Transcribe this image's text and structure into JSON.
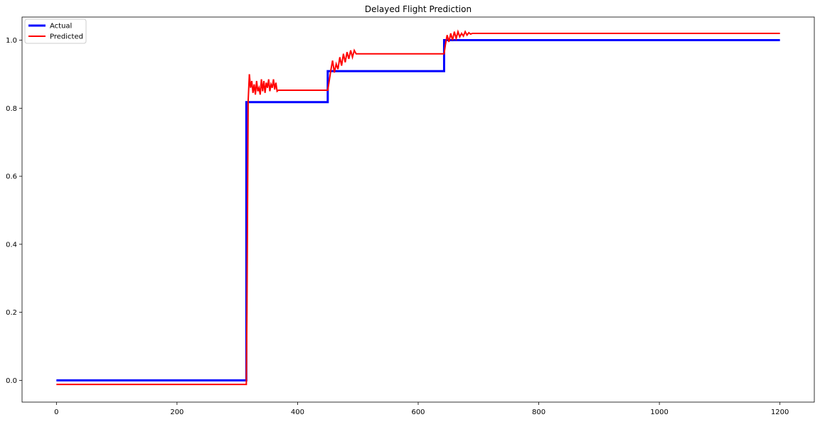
{
  "chart_data": {
    "type": "line",
    "title": "Delayed Flight Prediction",
    "xlabel": "",
    "ylabel": "",
    "xlim": [
      -57,
      1257
    ],
    "ylim": [
      -0.064,
      1.068
    ],
    "x_ticks": [
      0,
      200,
      400,
      600,
      800,
      1000,
      1200
    ],
    "y_ticks": [
      0.0,
      0.2,
      0.4,
      0.6,
      0.8,
      1.0
    ],
    "x_tick_labels": [
      "0",
      "200",
      "400",
      "600",
      "800",
      "1000",
      "1200"
    ],
    "y_tick_labels": [
      "0.0",
      "0.2",
      "0.4",
      "0.6",
      "0.8",
      "1.0"
    ],
    "grid": false,
    "legend_position": "top-left",
    "series": [
      {
        "name": "Actual",
        "color": "#0000ff",
        "x": [
          0,
          315,
          315,
          450,
          450,
          643,
          643,
          1200
        ],
        "y": [
          0.0,
          0.0,
          0.818,
          0.818,
          0.909,
          0.909,
          1.0,
          1.0
        ]
      },
      {
        "name": "Predicted",
        "color": "#ff0000",
        "x": [
          0,
          315,
          316,
          318,
          320,
          322,
          324,
          326,
          328,
          330,
          332,
          334,
          336,
          338,
          340,
          342,
          344,
          346,
          348,
          350,
          352,
          354,
          356,
          358,
          360,
          362,
          364,
          366,
          368,
          450,
          452,
          455,
          458,
          461,
          464,
          467,
          470,
          473,
          476,
          479,
          482,
          485,
          488,
          491,
          494,
          497,
          500,
          643,
          645,
          648,
          651,
          654,
          657,
          660,
          663,
          666,
          669,
          672,
          675,
          678,
          681,
          684,
          687,
          690,
          693,
          1200
        ],
        "y": [
          -0.012,
          -0.012,
          0.2,
          0.82,
          0.9,
          0.86,
          0.88,
          0.845,
          0.87,
          0.84,
          0.88,
          0.85,
          0.86,
          0.84,
          0.885,
          0.85,
          0.88,
          0.845,
          0.875,
          0.86,
          0.885,
          0.85,
          0.87,
          0.86,
          0.885,
          0.855,
          0.875,
          0.85,
          0.853,
          0.853,
          0.875,
          0.91,
          0.94,
          0.905,
          0.93,
          0.915,
          0.95,
          0.925,
          0.96,
          0.935,
          0.965,
          0.945,
          0.97,
          0.95,
          0.97,
          0.96,
          0.96,
          0.96,
          0.985,
          1.015,
          0.995,
          1.02,
          1.0,
          1.025,
          1.005,
          1.025,
          1.01,
          1.02,
          1.012,
          1.025,
          1.015,
          1.022,
          1.018,
          1.02,
          1.02,
          1.02
        ]
      }
    ]
  }
}
